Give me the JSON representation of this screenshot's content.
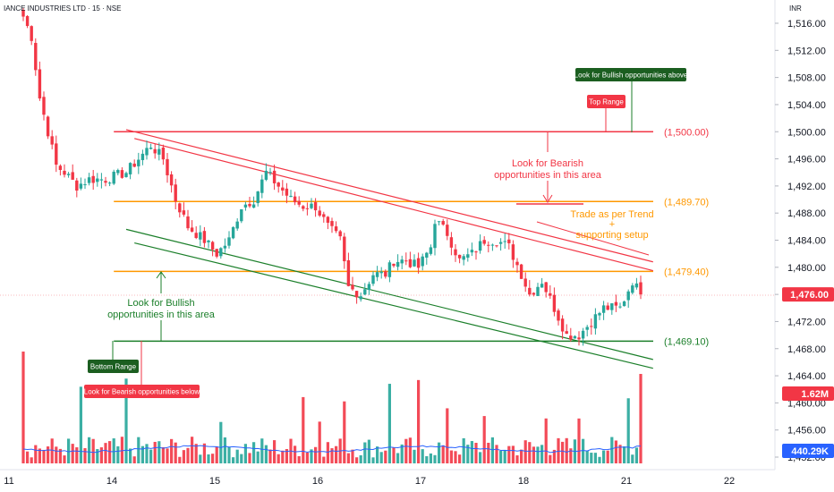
{
  "header": {
    "symbol_label": "IANCE INDUSTRIES LTD · 15 · NSE",
    "currency": "INR"
  },
  "colors": {
    "up": "#26a69a",
    "down": "#f23645",
    "resistance": "#f23645",
    "mid_level": "#ff9800",
    "support": "#1b7f2a",
    "trend_upper": "#f23645",
    "trend_lower": "#1b7f2a",
    "vol_ma": "#2962ff",
    "last_price_bg": "#f23645",
    "vol_ma_bg": "#2962ff"
  },
  "chart_data": {
    "type": "candlestick",
    "ylim": [
      1450,
      1518
    ],
    "y_ticks": [
      1452,
      1456,
      1460,
      1464,
      1468,
      1472,
      1476,
      1480,
      1484,
      1488,
      1492,
      1496,
      1500,
      1504,
      1508,
      1512,
      1516
    ],
    "y_tick_labels": [
      "1,452.00",
      "1,456.00",
      "1,460.00",
      "1,464.00",
      "1,468.00",
      "1,472.00",
      "1,476.00",
      "1,480.00",
      "1,484.00",
      "1,488.00",
      "1,492.00",
      "1,496.00",
      "1,500.00",
      "1,504.00",
      "1,508.00",
      "1,512.00",
      "1,516.00"
    ],
    "x_ticks": [
      {
        "label": "11",
        "bar": 0
      },
      {
        "label": "14",
        "bar": 25
      },
      {
        "label": "15",
        "bar": 50
      },
      {
        "label": "16",
        "bar": 75
      },
      {
        "label": "17",
        "bar": 100
      },
      {
        "label": "18",
        "bar": 125
      },
      {
        "label": "21",
        "bar": 150
      },
      {
        "label": "22",
        "bar": 175
      }
    ],
    "close_path": [
      [
        0,
        1517
      ],
      [
        2,
        1514
      ],
      [
        4,
        1505
      ],
      [
        6,
        1500
      ],
      [
        8,
        1495
      ],
      [
        10,
        1494
      ],
      [
        13,
        1492
      ],
      [
        16,
        1493
      ],
      [
        20,
        1493
      ],
      [
        25,
        1494
      ],
      [
        28,
        1496
      ],
      [
        31,
        1498
      ],
      [
        34,
        1496
      ],
      [
        37,
        1490
      ],
      [
        40,
        1486
      ],
      [
        44,
        1484
      ],
      [
        47,
        1482
      ],
      [
        50,
        1484
      ],
      [
        53,
        1489
      ],
      [
        56,
        1490
      ],
      [
        59,
        1494
      ],
      [
        62,
        1492
      ],
      [
        65,
        1490
      ],
      [
        68,
        1489
      ],
      [
        71,
        1489
      ],
      [
        74,
        1486
      ],
      [
        77,
        1484
      ],
      [
        79,
        1477
      ],
      [
        82,
        1476
      ],
      [
        85,
        1479
      ],
      [
        88,
        1479
      ],
      [
        90,
        1481
      ],
      [
        93,
        1481
      ],
      [
        96,
        1480
      ],
      [
        99,
        1483
      ],
      [
        100,
        1487
      ],
      [
        103,
        1485
      ],
      [
        106,
        1481
      ],
      [
        109,
        1482
      ],
      [
        112,
        1484
      ],
      [
        115,
        1484
      ],
      [
        118,
        1483
      ],
      [
        121,
        1479
      ],
      [
        123,
        1476
      ],
      [
        126,
        1478
      ],
      [
        129,
        1474
      ],
      [
        132,
        1470
      ],
      [
        135,
        1470
      ],
      [
        138,
        1472
      ],
      [
        141,
        1474
      ],
      [
        145,
        1474
      ],
      [
        148,
        1478
      ],
      [
        150,
        1476
      ]
    ],
    "levels": [
      {
        "price": 1500.0,
        "label": "(1,500.00)",
        "role": "resistance",
        "from_bar": 22
      },
      {
        "price": 1489.7,
        "label": "(1,489.70)",
        "role": "mid_level",
        "from_bar": 22
      },
      {
        "price": 1479.4,
        "label": "(1,479.40)",
        "role": "mid_level",
        "from_bar": 22
      },
      {
        "price": 1469.1,
        "label": "(1,469.10)",
        "role": "support",
        "from_bar": 22
      }
    ],
    "trendlines": [
      {
        "role": "trend_upper",
        "from": [
          25,
          1500.3
        ],
        "to": [
          153,
          1480.8
        ]
      },
      {
        "role": "trend_upper",
        "from": [
          27,
          1499.0
        ],
        "to": [
          153,
          1479.5
        ]
      },
      {
        "role": "trend_lower",
        "from": [
          25,
          1485.6
        ],
        "to": [
          153,
          1466.4
        ]
      },
      {
        "role": "trend_lower",
        "from": [
          27,
          1483.6
        ],
        "to": [
          153,
          1465.1
        ]
      }
    ],
    "last_price": {
      "value": 1476.0,
      "label": "1,476.00"
    },
    "volume": {
      "last_label": "1.62M",
      "ma_label": "440.29K",
      "ma_level": 0.22,
      "spike_bars": [
        0,
        14,
        25,
        48,
        68,
        72,
        78,
        89,
        96,
        103,
        112,
        127,
        135,
        147,
        150,
        152
      ]
    }
  },
  "annotations": {
    "bullish_above": "Look for Bullish opportunities above",
    "top_range": "Top Range",
    "bearish_area_1": "Look for Bearish",
    "bearish_area_2": "opportunities in this area",
    "trend_1": "Trade as per Trend",
    "trend_2": "+",
    "trend_3": "supporting setup",
    "bullish_area_1": "Look for Bullish",
    "bullish_area_2": "opportunities in this area",
    "bottom_range": "Bottom Range",
    "bearish_below": "Look for Bearish opportunities below"
  }
}
